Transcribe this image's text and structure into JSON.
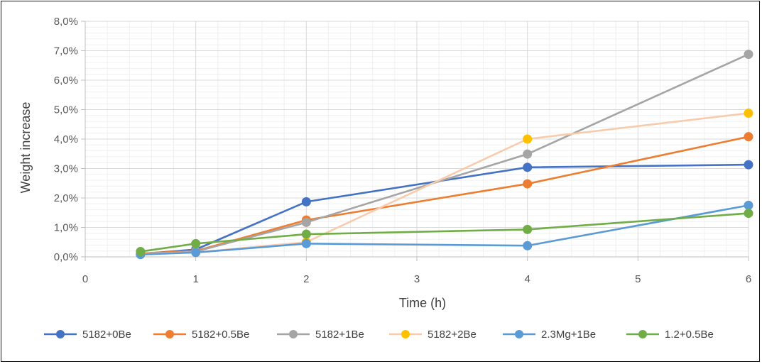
{
  "chart_data": {
    "type": "line",
    "title": "",
    "xlabel": "Time (h)",
    "ylabel": "Weight increase",
    "xlim": [
      0,
      6
    ],
    "ylim": [
      0,
      0.08
    ],
    "x_ticks": [
      "0",
      "1",
      "2",
      "3",
      "4",
      "5",
      "6"
    ],
    "y_ticks": [
      "0,0%",
      "1,0%",
      "2,0%",
      "3,0%",
      "4,0%",
      "5,0%",
      "6,0%",
      "7,0%",
      "8,0%"
    ],
    "grid": true,
    "legend_position": "bottom",
    "series": [
      {
        "name": "5182+0Be",
        "color": "#4472C4",
        "x": [
          0.5,
          1,
          2,
          4,
          6
        ],
        "values": [
          0.001,
          0.0025,
          0.0187,
          0.0304,
          0.0313
        ]
      },
      {
        "name": "5182+0.5Be",
        "color": "#ED7D31",
        "x": [
          0.5,
          1,
          2,
          4,
          6
        ],
        "values": [
          0.0012,
          0.002,
          0.0125,
          0.0248,
          0.0408
        ]
      },
      {
        "name": "5182+1Be",
        "color": "#A5A5A5",
        "x": [
          0.5,
          1,
          2,
          4,
          6
        ],
        "values": [
          0.0008,
          0.0018,
          0.0117,
          0.0349,
          0.0688
        ]
      },
      {
        "name": "5182+2Be",
        "color": "#F8CBAD",
        "marker_color": "#FFC000",
        "x": [
          0.5,
          1,
          2,
          4,
          6
        ],
        "values": [
          0.001,
          0.0015,
          0.005,
          0.04,
          0.0488
        ]
      },
      {
        "name": "2.3Mg+1Be",
        "color": "#5B9BD5",
        "x": [
          0.5,
          1,
          2,
          4,
          6
        ],
        "values": [
          0.0008,
          0.0015,
          0.0045,
          0.0038,
          0.0175
        ]
      },
      {
        "name": "1.2+0.5Be",
        "color": "#70AD47",
        "x": [
          0.5,
          1,
          2,
          4,
          6
        ],
        "values": [
          0.0018,
          0.0045,
          0.0077,
          0.0093,
          0.0148
        ]
      }
    ]
  }
}
